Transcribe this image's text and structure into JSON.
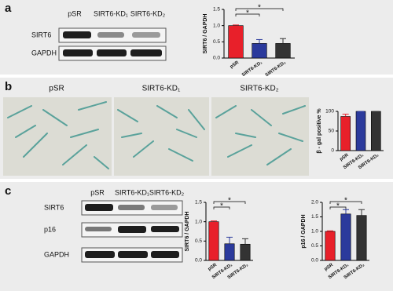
{
  "panels": {
    "a": {
      "label": "a",
      "lanes": [
        "pSR",
        "SIRT6-KD₁",
        "SIRT6-KD₂"
      ],
      "rows": [
        "SIRT6",
        "GAPDH"
      ]
    },
    "b": {
      "label": "b",
      "images": [
        "pSR",
        "SIRT6-KD₁",
        "SIRT6-KD₂"
      ]
    },
    "c": {
      "label": "c",
      "lanes": [
        "pSR",
        "SIRT6-KD₁",
        "SIRT6-KD₂"
      ],
      "rows": [
        "SIRT6",
        "p16",
        "GAPDH"
      ]
    }
  },
  "chart_data": [
    {
      "type": "bar",
      "ylabel": "SIRT6 / GAPDH",
      "categories": [
        "pSR",
        "SIRT6-KD₁",
        "SIRT6-KD₂"
      ],
      "values": [
        1.0,
        0.45,
        0.45
      ],
      "errors": [
        0.02,
        0.12,
        0.15
      ],
      "colors": [
        "#e8202a",
        "#2b3a9c",
        "#333333"
      ],
      "ylim": [
        0,
        1.5
      ],
      "yticks": [
        {
          "value": 0,
          "label": "0.0"
        },
        0.5,
        {
          "value": 1,
          "label": "1.0"
        },
        1.5
      ],
      "annotations": [
        "*",
        "*"
      ]
    },
    {
      "type": "bar",
      "ylabel": "β - gal positive %",
      "categories": [
        "pSR",
        "SIRT6-KD₁",
        "SIRT6-KD₂"
      ],
      "values": [
        87,
        100,
        100
      ],
      "errors": [
        6,
        0,
        0
      ],
      "colors": [
        "#e8202a",
        "#2b3a9c",
        "#333333"
      ],
      "ylim": [
        0,
        100
      ],
      "yticks": [
        0,
        50,
        100
      ],
      "annotations": []
    },
    {
      "type": "bar",
      "ylabel": "SIRT6 / GAPDH",
      "categories": [
        "pSR",
        "SIRT6-KD₁",
        "SIRT6-KD₂"
      ],
      "values": [
        1.0,
        0.43,
        0.42
      ],
      "errors": [
        0.02,
        0.17,
        0.14
      ],
      "colors": [
        "#e8202a",
        "#2b3a9c",
        "#333333"
      ],
      "ylim": [
        0,
        1.5
      ],
      "yticks": [
        {
          "value": 0,
          "label": "0.0"
        },
        0.5,
        {
          "value": 1,
          "label": "1.0"
        },
        1.5
      ],
      "annotations": [
        "*",
        "*"
      ]
    },
    {
      "type": "bar",
      "ylabel": "p16 / GAPDH",
      "categories": [
        "pSR",
        "SIRT6-KD₁",
        "SIRT6-KD₂"
      ],
      "values": [
        1.0,
        1.6,
        1.55
      ],
      "errors": [
        0.02,
        0.15,
        0.2
      ],
      "colors": [
        "#e8202a",
        "#2b3a9c",
        "#333333"
      ],
      "ylim": [
        0,
        2
      ],
      "yticks": [
        {
          "value": 0,
          "label": "0.0"
        },
        0.5,
        {
          "value": 1,
          "label": "1.0"
        },
        1.5,
        {
          "value": 2,
          "label": "2.0"
        }
      ],
      "annotations": [
        "*",
        "*"
      ]
    }
  ]
}
